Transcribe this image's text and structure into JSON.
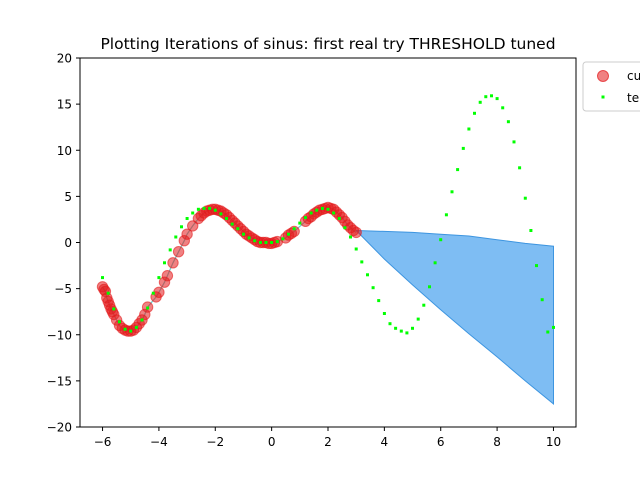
{
  "chart_data": {
    "type": "scatter",
    "title": "Plotting Iterations of sinus: first real try THRESHOLD tuned",
    "xlabel": "",
    "ylabel": "",
    "xlim": [
      -6.8,
      10.8
    ],
    "ylim": [
      -20,
      20
    ],
    "x_ticks": [
      -6,
      -4,
      -2,
      0,
      2,
      4,
      6,
      8,
      10
    ],
    "y_ticks": [
      -20,
      -15,
      -10,
      -5,
      0,
      5,
      10,
      15,
      20
    ],
    "grid": false,
    "legend": {
      "placement": "outside-top-right",
      "entries": [
        "cu",
        "te"
      ]
    },
    "colors": {
      "current_points": "#e31a1c",
      "test_points": "#00ff00",
      "fill": "#5aaaf0",
      "fit_line": "#40c0c0"
    },
    "series": [
      {
        "name": "cu",
        "kind": "marker",
        "x": [
          -6.0,
          -5.95,
          -5.9,
          -5.85,
          -5.8,
          -5.75,
          -5.7,
          -5.65,
          -5.6,
          -5.5,
          -5.4,
          -5.3,
          -5.2,
          -5.1,
          -5.0,
          -4.9,
          -4.8,
          -4.7,
          -4.6,
          -4.5,
          -4.4,
          -4.1,
          -4.0,
          -3.8,
          -3.7,
          -3.5,
          -3.3,
          -3.1,
          -3.0,
          -2.8,
          -2.6,
          -2.5,
          -2.4,
          -2.3,
          -2.2,
          -2.1,
          -2.0,
          -1.9,
          -1.8,
          -1.7,
          -1.6,
          -1.5,
          -1.4,
          -1.3,
          -1.2,
          -1.1,
          -1.0,
          -0.9,
          -0.8,
          -0.7,
          -0.6,
          -0.5,
          -0.4,
          -0.3,
          -0.2,
          -0.1,
          0.0,
          0.1,
          0.2,
          0.5,
          0.6,
          0.7,
          0.8,
          1.2,
          1.3,
          1.4,
          1.5,
          1.6,
          1.7,
          1.8,
          1.9,
          2.0,
          2.1,
          2.2,
          2.3,
          2.4,
          2.5,
          2.6,
          2.7,
          2.8,
          2.9,
          3.0
        ],
        "y": [
          -4.8,
          -5.1,
          -5.3,
          -6.0,
          -6.4,
          -6.8,
          -7.2,
          -7.5,
          -7.8,
          -8.4,
          -9.0,
          -9.3,
          -9.5,
          -9.6,
          -9.6,
          -9.5,
          -9.2,
          -8.8,
          -8.4,
          -7.8,
          -7.0,
          -5.9,
          -5.4,
          -4.3,
          -3.6,
          -2.2,
          -1.0,
          0.2,
          0.9,
          1.8,
          2.6,
          2.9,
          3.2,
          3.4,
          3.5,
          3.6,
          3.6,
          3.5,
          3.4,
          3.2,
          3.0,
          2.7,
          2.4,
          2.1,
          1.8,
          1.5,
          1.2,
          0.9,
          0.7,
          0.5,
          0.3,
          0.1,
          0.0,
          0.0,
          0.0,
          -0.1,
          -0.1,
          0.0,
          0.1,
          0.5,
          0.8,
          1.0,
          1.2,
          2.3,
          2.6,
          2.8,
          3.1,
          3.3,
          3.5,
          3.6,
          3.7,
          3.8,
          3.7,
          3.6,
          3.3,
          3.0,
          2.7,
          2.3,
          1.9,
          1.6,
          1.3,
          1.1
        ]
      },
      {
        "name": "te",
        "kind": "marker",
        "x": [
          -6.0,
          -5.8,
          -5.6,
          -5.4,
          -5.2,
          -5.0,
          -4.8,
          -4.6,
          -4.4,
          -4.2,
          -4.0,
          -3.8,
          -3.6,
          -3.4,
          -3.2,
          -3.0,
          -2.8,
          -2.6,
          -2.4,
          -2.2,
          -2.0,
          -1.8,
          -1.6,
          -1.4,
          -1.2,
          -1.0,
          -0.8,
          -0.6,
          -0.4,
          -0.2,
          0.0,
          0.2,
          0.4,
          0.6,
          0.8,
          1.0,
          1.2,
          1.4,
          1.6,
          1.8,
          2.0,
          2.2,
          2.4,
          2.6,
          2.8,
          3.0,
          3.2,
          3.4,
          3.6,
          3.8,
          4.0,
          4.2,
          4.4,
          4.6,
          4.8,
          5.0,
          5.2,
          5.4,
          5.6,
          5.8,
          6.0,
          6.2,
          6.4,
          6.6,
          6.8,
          7.0,
          7.2,
          7.4,
          7.6,
          7.8,
          8.0,
          8.2,
          8.4,
          8.6,
          8.8,
          9.0,
          9.2,
          9.4,
          9.6,
          9.8,
          10.0
        ],
        "y": [
          -3.8,
          -5.5,
          -7.2,
          -8.6,
          -9.4,
          -9.6,
          -9.2,
          -8.4,
          -7.1,
          -5.5,
          -3.8,
          -2.2,
          -0.8,
          0.6,
          1.7,
          2.6,
          3.2,
          3.6,
          3.7,
          3.7,
          3.5,
          3.1,
          2.6,
          2.0,
          1.5,
          0.9,
          0.5,
          0.2,
          0.0,
          0.0,
          0.0,
          0.1,
          0.4,
          0.9,
          1.5,
          2.1,
          2.7,
          3.2,
          3.5,
          3.7,
          3.6,
          3.2,
          2.6,
          1.6,
          0.6,
          -0.7,
          -2.1,
          -3.5,
          -4.9,
          -6.3,
          -7.7,
          -8.8,
          -9.3,
          -9.6,
          -9.8,
          -9.3,
          -8.3,
          -6.8,
          -4.8,
          -2.2,
          0.3,
          3.0,
          5.5,
          7.9,
          10.2,
          12.3,
          14.0,
          15.2,
          15.8,
          15.9,
          15.6,
          14.6,
          13.1,
          10.9,
          8.1,
          4.8,
          1.3,
          -2.5,
          -6.2,
          -9.7,
          -9.2
        ]
      }
    ],
    "confidence_band": {
      "x": [
        3.0,
        4.0,
        5.0,
        6.0,
        7.0,
        8.0,
        9.0,
        10.0
      ],
      "upper": [
        1.3,
        1.2,
        1.1,
        0.9,
        0.7,
        0.3,
        -0.1,
        -0.4
      ],
      "lower": [
        1.3,
        -1.8,
        -4.6,
        -7.3,
        -9.9,
        -12.4,
        -15.0,
        -17.5
      ]
    }
  }
}
